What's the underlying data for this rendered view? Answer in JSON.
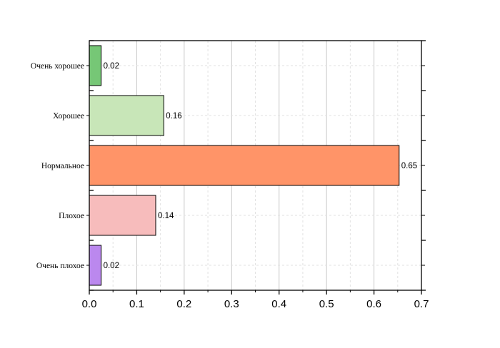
{
  "chart_data": {
    "type": "bar",
    "orientation": "horizontal",
    "categories": [
      "Очень хорошее",
      "Хорошее",
      "Нормальное",
      "Плохое",
      "Очень плохое"
    ],
    "values": [
      0.025,
      0.157,
      0.653,
      0.14,
      0.025
    ],
    "data_labels": [
      "0.02",
      "0.16",
      "0.65",
      "0.14",
      "0.02"
    ],
    "colors": [
      "#76c776",
      "#c8e6b8",
      "#ff9468",
      "#f7bcbc",
      "#bb88ee"
    ],
    "xlim": [
      0,
      0.7
    ],
    "xticks": [
      "0.0",
      "0.1",
      "0.2",
      "0.3",
      "0.4",
      "0.5",
      "0.6",
      "0.7"
    ],
    "title": "",
    "xlabel": "",
    "ylabel": "",
    "grid": true,
    "legend": "none"
  }
}
